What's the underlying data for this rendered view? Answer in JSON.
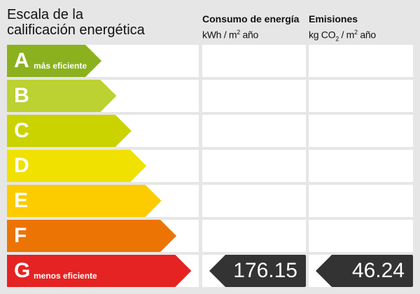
{
  "title_line1": "Escala de la",
  "title_line2": "calificación energética",
  "consumption_header": {
    "title": "Consumo de energía",
    "unit_a": "kWh / m",
    "unit_sup": "2",
    "unit_b": " año"
  },
  "emissions_header": {
    "title": "Emisiones",
    "unit_a": "kg CO",
    "unit_sub": "2",
    "unit_mid": " / m",
    "unit_sup": "2",
    "unit_b": " año"
  },
  "ratings": [
    {
      "letter": "A",
      "label": "más eficiente",
      "color": "#8cb11e"
    },
    {
      "letter": "B",
      "label": "",
      "color": "#bcd132"
    },
    {
      "letter": "C",
      "label": "",
      "color": "#cad300"
    },
    {
      "letter": "D",
      "label": "",
      "color": "#f0e100"
    },
    {
      "letter": "E",
      "label": "",
      "color": "#fccb00"
    },
    {
      "letter": "F",
      "label": "",
      "color": "#ec7404"
    },
    {
      "letter": "G",
      "label": "menos eficiente",
      "color": "#e42322"
    }
  ],
  "current": {
    "rating": "G",
    "consumption": "176.15",
    "emissions": "46.24",
    "color": "#333333"
  }
}
